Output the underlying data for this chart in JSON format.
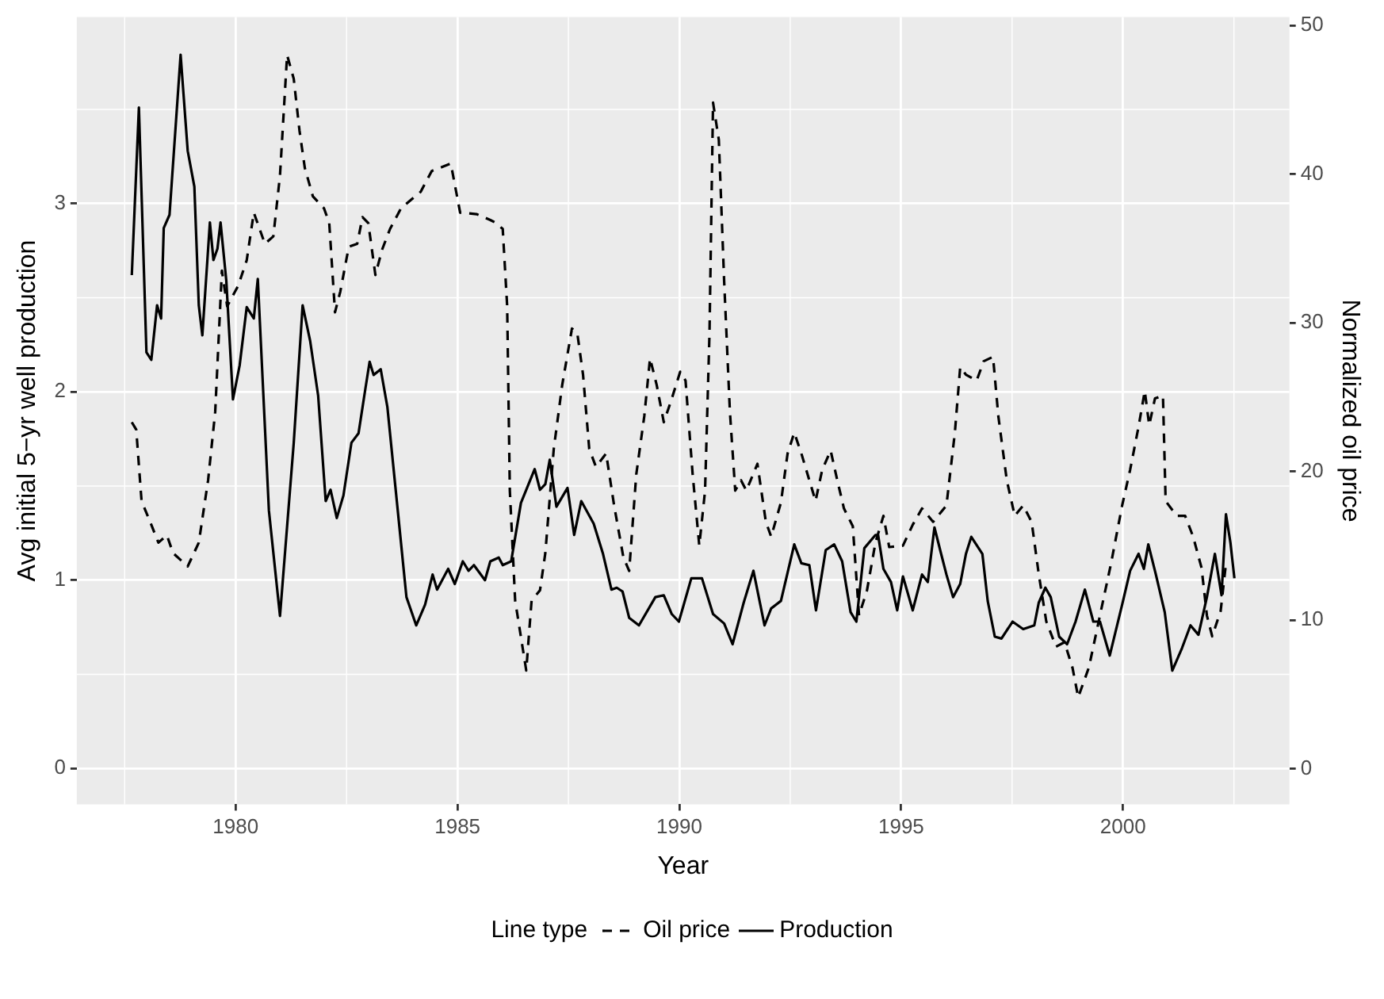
{
  "chart_data": {
    "type": "line",
    "xlabel": "Year",
    "ylabel": "Avg initial 5−yr well production",
    "y2label": "Normalized oil price",
    "legend_title": "Line type",
    "legend": "bottom",
    "grid": true,
    "marker": "none",
    "xlim": [
      1976.42,
      2003.75
    ],
    "xticks": [
      1980,
      1985,
      1990,
      1995,
      2000
    ],
    "ylim": [
      -0.19,
      3.99
    ],
    "yticks": [
      0,
      1,
      2,
      3
    ],
    "y2lim": [
      -2.4,
      50.55
    ],
    "y2ticks": [
      0,
      10,
      20,
      30,
      40,
      50
    ],
    "series": [
      {
        "name": "Oil price",
        "color": "#000000",
        "line_style": "dashed",
        "axis": "y2",
        "x": [
          1977.66,
          1977.76,
          1977.88,
          1978.1,
          1978.26,
          1978.45,
          1978.59,
          1978.92,
          1979.17,
          1979.38,
          1979.54,
          1979.69,
          1979.81,
          1980.06,
          1980.25,
          1980.41,
          1980.66,
          1980.85,
          1981.0,
          1981.16,
          1981.31,
          1981.44,
          1981.56,
          1981.74,
          1981.99,
          1982.11,
          1982.24,
          1982.36,
          1982.55,
          1982.74,
          1982.86,
          1982.99,
          1983.15,
          1983.3,
          1983.48,
          1983.73,
          1984.17,
          1984.42,
          1984.85,
          1985.06,
          1985.43,
          1985.74,
          1985.87,
          1986.02,
          1986.12,
          1986.18,
          1986.3,
          1986.55,
          1986.67,
          1986.86,
          1986.98,
          1987.17,
          1987.36,
          1987.58,
          1987.7,
          1987.83,
          1987.97,
          1988.12,
          1988.35,
          1988.53,
          1988.74,
          1988.87,
          1989.03,
          1989.21,
          1989.34,
          1989.49,
          1989.65,
          1989.81,
          1990.02,
          1990.14,
          1990.3,
          1990.45,
          1990.58,
          1990.68,
          1990.76,
          1990.89,
          1991.01,
          1991.14,
          1991.26,
          1991.39,
          1991.51,
          1991.76,
          1991.95,
          1992.07,
          1992.29,
          1992.44,
          1992.59,
          1992.75,
          1993.07,
          1993.22,
          1993.41,
          1993.56,
          1993.71,
          1993.91,
          1994.05,
          1994.23,
          1994.42,
          1994.6,
          1994.73,
          1995.04,
          1995.26,
          1995.47,
          1995.72,
          1996.02,
          1996.21,
          1996.33,
          1996.46,
          1996.7,
          1996.86,
          1997.07,
          1997.19,
          1997.38,
          1997.56,
          1997.75,
          1997.94,
          1998.1,
          1998.27,
          1998.49,
          1998.68,
          1998.86,
          1998.99,
          1999.23,
          1999.48,
          1999.73,
          1999.98,
          2000.16,
          2000.35,
          2000.49,
          2000.59,
          2000.72,
          2000.9,
          2000.96,
          2001.21,
          2001.4,
          2001.58,
          2001.77,
          2001.89,
          2002.01,
          2002.2,
          2002.32
        ],
        "values": [
          23.3,
          22.8,
          18.0,
          16.4,
          15.2,
          15.7,
          14.5,
          13.6,
          15.2,
          19.4,
          24.0,
          33.5,
          31.1,
          32.5,
          34.2,
          37.4,
          35.3,
          35.8,
          39.9,
          48.0,
          46.4,
          42.9,
          40.4,
          38.5,
          37.7,
          36.7,
          30.7,
          32.1,
          35.1,
          35.3,
          37.1,
          36.7,
          33.2,
          34.9,
          36.3,
          37.7,
          38.8,
          40.2,
          40.7,
          37.4,
          37.3,
          36.9,
          36.7,
          36.3,
          31.1,
          18.7,
          11.3,
          6.6,
          11.3,
          12.0,
          14.5,
          21.5,
          25.8,
          29.6,
          29.3,
          26.5,
          21.5,
          20.3,
          21.2,
          17.7,
          14.2,
          13.3,
          19.8,
          23.7,
          27.6,
          25.8,
          23.3,
          24.7,
          26.7,
          26.1,
          19.8,
          15.0,
          18.7,
          29.3,
          44.8,
          42.3,
          32.8,
          24.0,
          18.7,
          19.4,
          18.7,
          20.5,
          16.6,
          15.6,
          17.9,
          21.2,
          22.6,
          21.2,
          18.0,
          20.1,
          21.4,
          19.4,
          17.5,
          16.3,
          10.3,
          12.0,
          15.2,
          17.0,
          14.9,
          15.0,
          16.4,
          17.5,
          16.6,
          17.7,
          22.6,
          27.0,
          26.5,
          26.1,
          27.4,
          27.7,
          23.7,
          19.4,
          17.0,
          17.7,
          16.6,
          13.1,
          9.9,
          8.2,
          8.5,
          6.8,
          4.8,
          6.8,
          10.3,
          13.8,
          17.7,
          20.1,
          23.0,
          25.4,
          23.1,
          24.9,
          25.1,
          18.0,
          17.0,
          17.0,
          15.6,
          13.5,
          10.3,
          8.9,
          10.6,
          13.8
        ]
      },
      {
        "name": "Production",
        "color": "#000000",
        "line_style": "solid",
        "x": [
          1977.66,
          1977.82,
          1977.99,
          1978.1,
          1978.23,
          1978.32,
          1978.38,
          1978.51,
          1978.76,
          1978.92,
          1979.07,
          1979.17,
          1979.25,
          1979.42,
          1979.5,
          1979.59,
          1979.66,
          1979.79,
          1979.94,
          1980.09,
          1980.25,
          1980.41,
          1980.5,
          1980.75,
          1981.0,
          1981.31,
          1981.51,
          1981.68,
          1981.86,
          1982.03,
          1982.14,
          1982.28,
          1982.43,
          1982.61,
          1982.77,
          1982.92,
          1983.02,
          1983.11,
          1983.27,
          1983.42,
          1983.85,
          1984.07,
          1984.27,
          1984.44,
          1984.54,
          1984.79,
          1984.94,
          1985.12,
          1985.25,
          1985.37,
          1985.62,
          1985.74,
          1985.93,
          1986.02,
          1986.21,
          1986.43,
          1986.74,
          1986.86,
          1986.98,
          1987.08,
          1987.23,
          1987.48,
          1987.63,
          1987.79,
          1988.07,
          1988.28,
          1988.47,
          1988.59,
          1988.72,
          1988.87,
          1989.09,
          1989.46,
          1989.65,
          1989.83,
          1989.99,
          1990.27,
          1990.51,
          1990.76,
          1991.01,
          1991.2,
          1991.45,
          1991.67,
          1991.92,
          1992.07,
          1992.29,
          1992.59,
          1992.75,
          1992.93,
          1993.08,
          1993.3,
          1993.49,
          1993.67,
          1993.86,
          1993.99,
          1994.17,
          1994.42,
          1994.48,
          1994.6,
          1994.77,
          1994.91,
          1995.04,
          1995.26,
          1995.47,
          1995.6,
          1995.75,
          1995.9,
          1996.02,
          1996.17,
          1996.33,
          1996.46,
          1996.58,
          1996.83,
          1996.95,
          1997.11,
          1997.26,
          1997.51,
          1997.75,
          1998.0,
          1998.1,
          1998.25,
          1998.37,
          1998.56,
          1998.74,
          1998.93,
          1999.14,
          1999.33,
          1999.48,
          1999.7,
          1999.98,
          2000.16,
          2000.35,
          2000.47,
          2000.57,
          2000.74,
          2000.94,
          2001.11,
          2001.33,
          2001.52,
          2001.7,
          2001.89,
          2002.07,
          2002.22,
          2002.32,
          2002.42,
          2002.51
        ],
        "values": [
          2.62,
          3.51,
          2.21,
          2.17,
          2.46,
          2.39,
          2.87,
          2.94,
          3.79,
          3.28,
          3.09,
          2.46,
          2.3,
          2.9,
          2.7,
          2.76,
          2.9,
          2.59,
          1.96,
          2.14,
          2.45,
          2.39,
          2.6,
          1.37,
          0.81,
          1.73,
          2.46,
          2.27,
          1.98,
          1.42,
          1.48,
          1.33,
          1.45,
          1.73,
          1.78,
          2.01,
          2.16,
          2.09,
          2.12,
          1.92,
          0.91,
          0.76,
          0.87,
          1.03,
          0.95,
          1.06,
          0.98,
          1.1,
          1.05,
          1.08,
          1.0,
          1.1,
          1.12,
          1.08,
          1.1,
          1.41,
          1.59,
          1.48,
          1.51,
          1.64,
          1.39,
          1.49,
          1.24,
          1.42,
          1.3,
          1.14,
          0.95,
          0.96,
          0.94,
          0.8,
          0.76,
          0.91,
          0.92,
          0.82,
          0.78,
          1.01,
          1.01,
          0.82,
          0.77,
          0.66,
          0.88,
          1.05,
          0.76,
          0.85,
          0.89,
          1.19,
          1.09,
          1.08,
          0.84,
          1.16,
          1.19,
          1.1,
          0.83,
          0.78,
          1.17,
          1.24,
          1.24,
          1.06,
          0.99,
          0.84,
          1.02,
          0.84,
          1.03,
          0.99,
          1.28,
          1.14,
          1.03,
          0.91,
          0.98,
          1.14,
          1.23,
          1.14,
          0.89,
          0.7,
          0.69,
          0.78,
          0.74,
          0.76,
          0.88,
          0.96,
          0.91,
          0.7,
          0.66,
          0.78,
          0.95,
          0.78,
          0.78,
          0.6,
          0.87,
          1.05,
          1.14,
          1.06,
          1.19,
          1.03,
          0.83,
          0.52,
          0.64,
          0.76,
          0.71,
          0.91,
          1.14,
          0.92,
          1.35,
          1.2,
          1.01
        ]
      }
    ]
  }
}
